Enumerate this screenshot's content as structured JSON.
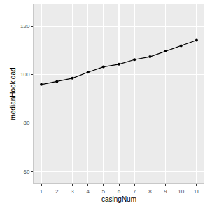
{
  "chart_data": {
    "type": "line",
    "x_label": "casingNum",
    "y_label": "medianHookload",
    "x": [
      1,
      2,
      3,
      4,
      5,
      6,
      7,
      8,
      9,
      10,
      11
    ],
    "values": [
      95.8,
      97.0,
      98.4,
      100.9,
      103.1,
      104.2,
      106.1,
      107.3,
      109.6,
      111.8,
      114.1
    ],
    "color": "#000000",
    "marker": "circle",
    "xlim": [
      0.5,
      11.5
    ],
    "xticks": [
      1,
      2,
      3,
      4,
      5,
      6,
      7,
      8,
      9,
      10,
      11
    ],
    "ylim": [
      55,
      129
    ],
    "yticks": [
      60,
      80,
      100,
      120
    ],
    "grid": true
  }
}
